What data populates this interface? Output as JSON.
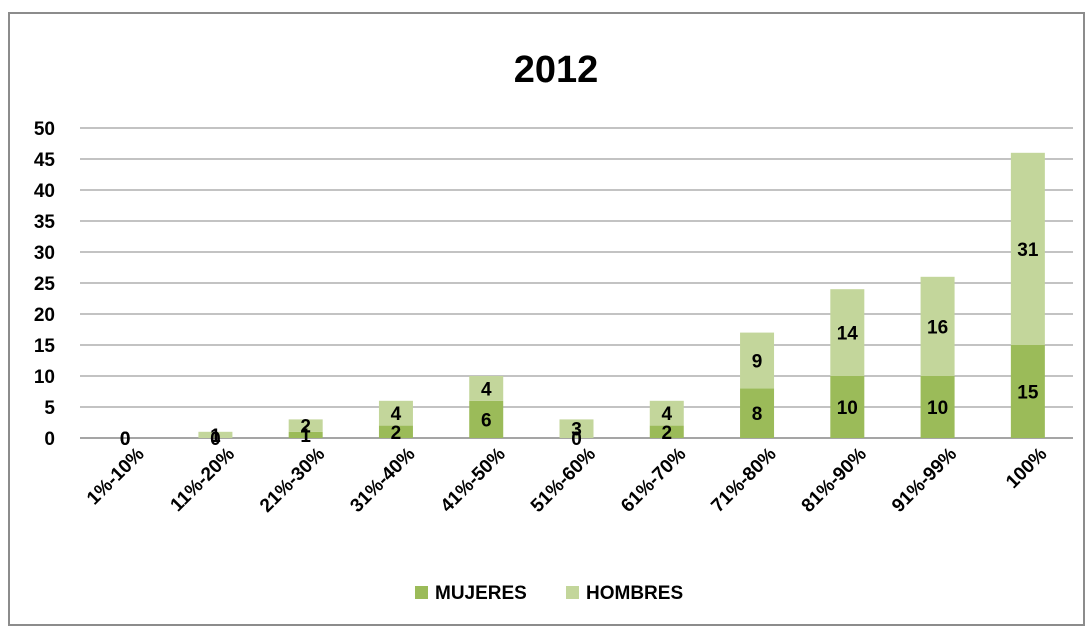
{
  "chart_data": {
    "type": "bar",
    "stacked": true,
    "title": "2012",
    "categories": [
      "1%-10%",
      "11%-20%",
      "21%-30%",
      "31%-40%",
      "41%-50%",
      "51%-60%",
      "61%-70%",
      "71%-80%",
      "81%-90%",
      "91%-99%",
      "100%"
    ],
    "series": [
      {
        "name": "MUJERES",
        "color": "#9bbb59",
        "values": [
          0,
          0,
          1,
          2,
          6,
          0,
          2,
          8,
          10,
          10,
          15
        ]
      },
      {
        "name": "HOMBRES",
        "color": "#c3d69b",
        "values": [
          0,
          1,
          2,
          4,
          4,
          3,
          4,
          9,
          14,
          16,
          31
        ]
      }
    ],
    "ylim": [
      0,
      50
    ],
    "yticks": [
      0,
      5,
      10,
      15,
      20,
      25,
      30,
      35,
      40,
      45,
      50
    ],
    "xlabel": "",
    "ylabel": "",
    "grid": true,
    "legend": "bottom"
  }
}
